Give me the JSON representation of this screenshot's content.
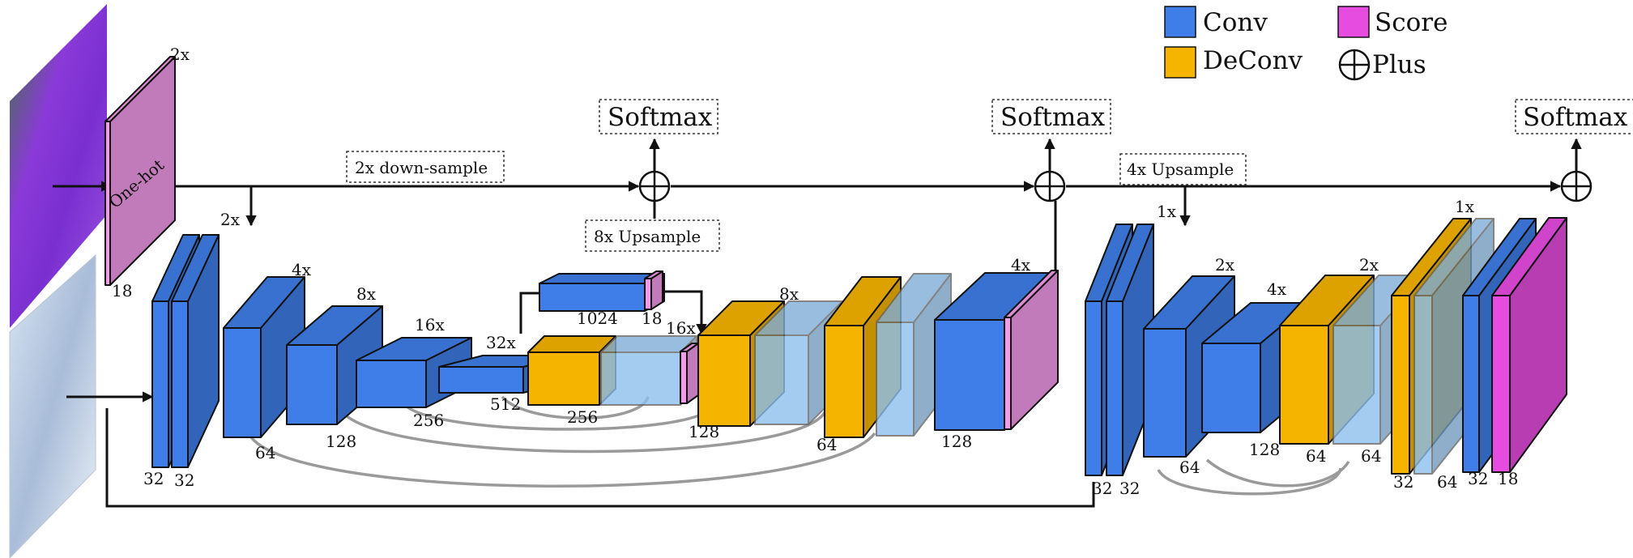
{
  "colors": {
    "conv": "#3f7de8",
    "deconv": "#f5b400",
    "score": "#e64ce0",
    "onehot": "#f29ae8",
    "light": "#8ec0ee",
    "edge": "#111111"
  },
  "legend": [
    {
      "label": "Conv",
      "color": "#3f7de8",
      "shape": "square"
    },
    {
      "label": "DeConv",
      "color": "#f5b400",
      "shape": "square"
    },
    {
      "label": "Score",
      "color": "#e64ce0",
      "shape": "square"
    },
    {
      "label": "Plus",
      "shape": "circle-plus"
    }
  ],
  "softmax_labels": [
    "Softmax",
    "Softmax",
    "Softmax"
  ],
  "flow_labels": {
    "down_sample": "2x down-sample",
    "upsample_8x": "8x Upsample",
    "upsample_4x": "4x Upsample",
    "onehot": "One-hot"
  },
  "scale_labels": [
    "2x",
    "2x",
    "4x",
    "8x",
    "16x",
    "32x",
    "16x",
    "8x",
    "4x",
    "1x",
    "2x",
    "4x",
    "2x",
    "1x"
  ],
  "channel_labels": [
    "18",
    "32",
    "32",
    "64",
    "128",
    "256",
    "512",
    "1024",
    "18",
    "256",
    "128",
    "64",
    "128",
    "32",
    "32",
    "64",
    "128",
    "64",
    "64",
    "32",
    "64",
    "32",
    "18"
  ]
}
